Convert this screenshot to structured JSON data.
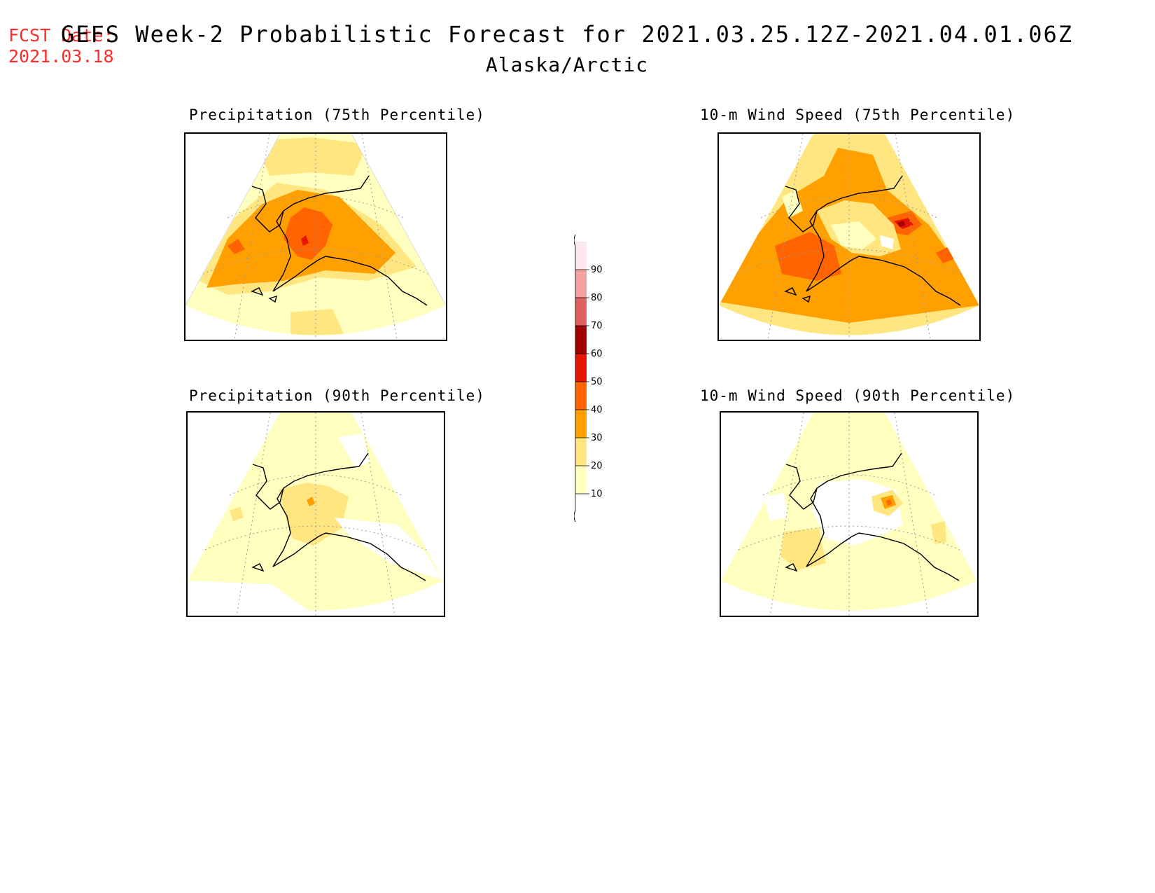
{
  "header": {
    "fcst_label": "FCST Date:",
    "fcst_date": "2021.03.18",
    "title": "GEFS Week-2 Probabilistic Forecast for 2021.03.25.12Z-2021.04.01.06Z",
    "region": "Alaska/Arctic"
  },
  "panels": [
    {
      "title": "Precipitation (75th Percentile)",
      "peak_category": "50"
    },
    {
      "title": "10-m Wind Speed (75th Percentile)",
      "peak_category": "60"
    },
    {
      "title": "Precipitation (90th Percentile)",
      "peak_category": "40"
    },
    {
      "title": "10-m Wind Speed (90th Percentile)",
      "peak_category": "40"
    }
  ],
  "legend": {
    "levels": [
      "10",
      "20",
      "30",
      "40",
      "50",
      "60",
      "70",
      "80",
      "90"
    ],
    "colors": [
      "#ffffc0",
      "#ffe680",
      "#ffa000",
      "#ff6400",
      "#e61400",
      "#a00000",
      "#e06060",
      "#f4a0a0",
      "#ffe8ec"
    ]
  },
  "colors": {
    "fcst_text": "#ff2a2a",
    "coastline": "#000000",
    "graticule": "#9a9a9a"
  }
}
